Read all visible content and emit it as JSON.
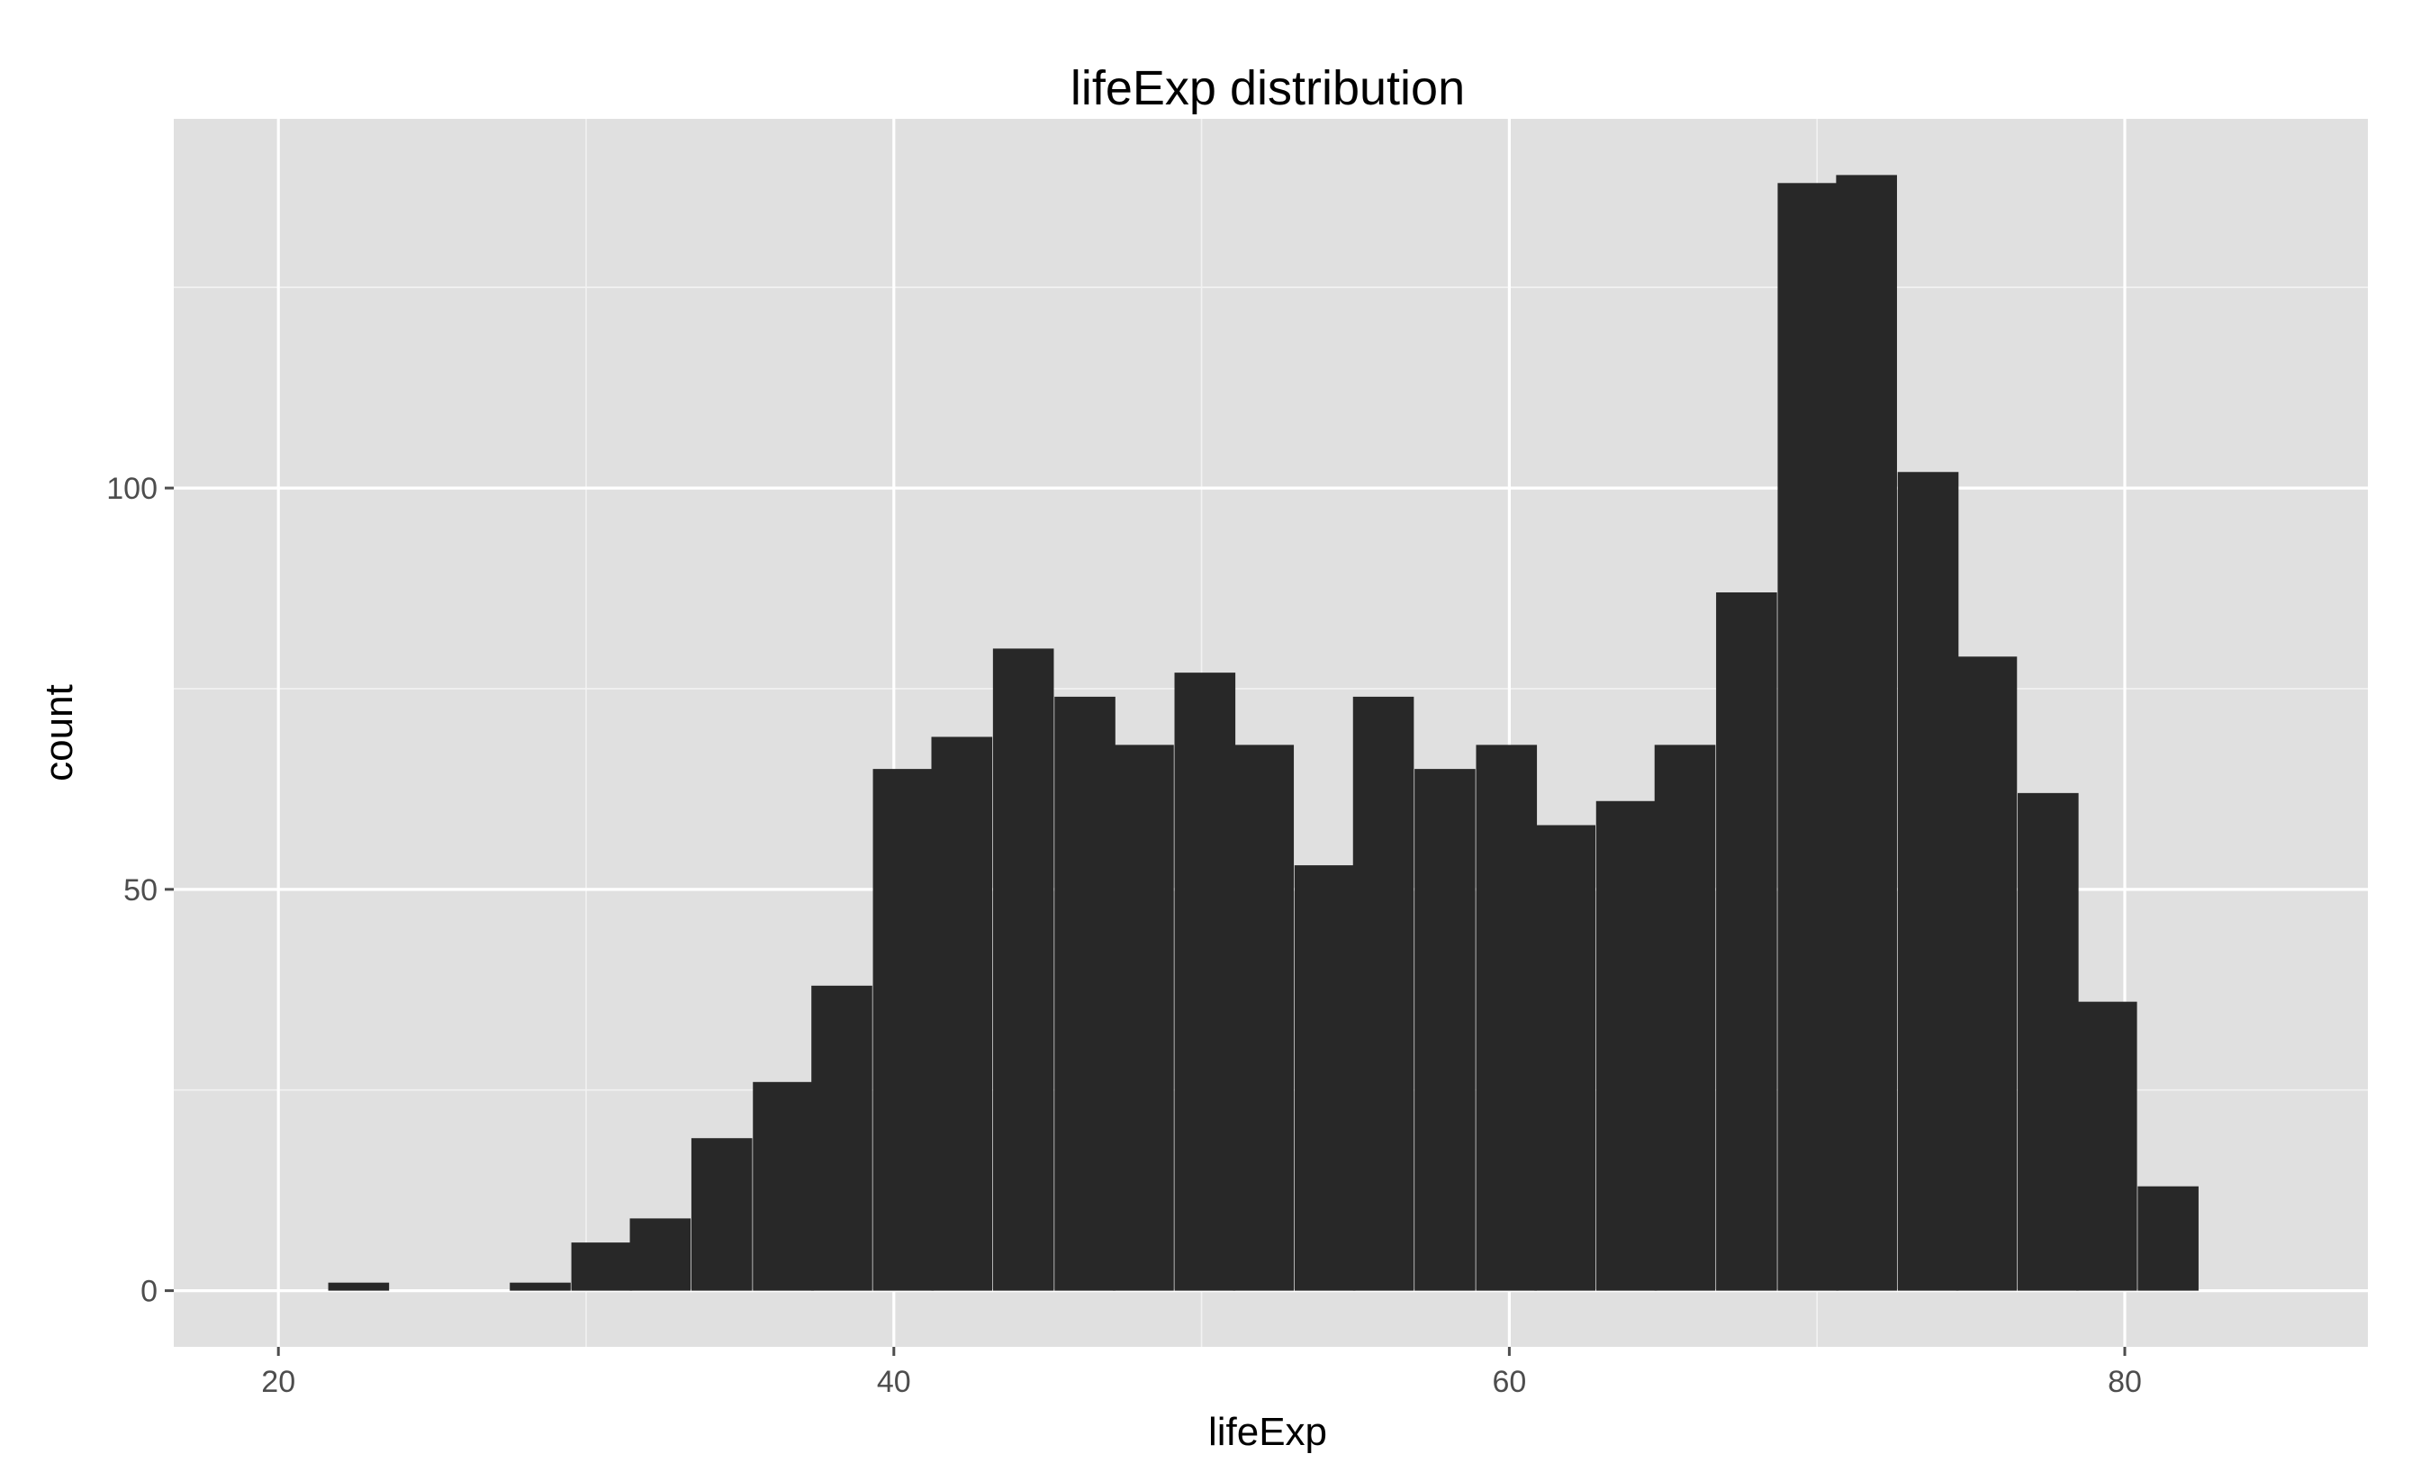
{
  "chart_data": {
    "type": "bar",
    "title": "lifeExp distribution",
    "xlabel": "lifeExp",
    "ylabel": "count",
    "xlim": [
      16.6,
      87.9
    ],
    "ylim": [
      -7,
      146
    ],
    "x_ticks": [
      20,
      40,
      60,
      80
    ],
    "y_ticks": [
      0,
      50,
      100
    ],
    "x_tick_labels": [
      "20",
      "40",
      "60",
      "80"
    ],
    "y_tick_labels": [
      "0",
      "50",
      "100"
    ],
    "bin_width": 1.96,
    "grid": true,
    "legend": "none",
    "background": "#e0e0e0",
    "bar_color": "#282828",
    "bins": [
      {
        "x": 22.6,
        "count": 1
      },
      {
        "x": 24.6,
        "count": 0
      },
      {
        "x": 26.6,
        "count": 0
      },
      {
        "x": 28.5,
        "count": 1
      },
      {
        "x": 30.5,
        "count": 6
      },
      {
        "x": 32.4,
        "count": 9
      },
      {
        "x": 34.4,
        "count": 19
      },
      {
        "x": 36.4,
        "count": 26
      },
      {
        "x": 38.3,
        "count": 38
      },
      {
        "x": 40.3,
        "count": 65
      },
      {
        "x": 42.2,
        "count": 69
      },
      {
        "x": 44.2,
        "count": 80
      },
      {
        "x": 46.2,
        "count": 74
      },
      {
        "x": 48.1,
        "count": 68
      },
      {
        "x": 50.1,
        "count": 77
      },
      {
        "x": 52.0,
        "count": 68
      },
      {
        "x": 54.0,
        "count": 53
      },
      {
        "x": 55.9,
        "count": 74
      },
      {
        "x": 57.9,
        "count": 65
      },
      {
        "x": 59.9,
        "count": 68
      },
      {
        "x": 61.8,
        "count": 58
      },
      {
        "x": 63.8,
        "count": 61
      },
      {
        "x": 65.7,
        "count": 68
      },
      {
        "x": 67.7,
        "count": 87
      },
      {
        "x": 69.7,
        "count": 138
      },
      {
        "x": 71.6,
        "count": 139
      },
      {
        "x": 73.6,
        "count": 102
      },
      {
        "x": 75.5,
        "count": 79
      },
      {
        "x": 77.5,
        "count": 62
      },
      {
        "x": 79.4,
        "count": 36
      },
      {
        "x": 81.4,
        "count": 13
      }
    ]
  }
}
